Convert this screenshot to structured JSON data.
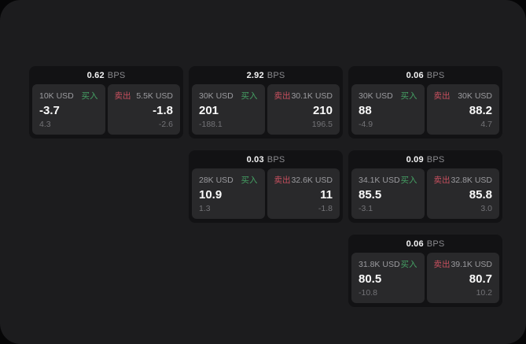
{
  "labels": {
    "bps": "BPS",
    "buy": "买入",
    "sell": "卖出"
  },
  "colors": {
    "background": "#060607",
    "panel": "#1c1c1e",
    "card": "#121214",
    "pane": "#29292b",
    "buy_green": "#45a164",
    "sell_red": "#c8505f",
    "value_white": "#fafafa",
    "muted_gray": "#9b9b9f",
    "dim_gray": "#737377"
  },
  "cards": [
    {
      "bps": "0.62",
      "buy": {
        "size": "10K USD",
        "value": "-3.7",
        "delta": "4.3"
      },
      "sell": {
        "size": "5.5K USD",
        "value": "-1.8",
        "delta": "-2.6"
      }
    },
    {
      "bps": "2.92",
      "buy": {
        "size": "30K USD",
        "value": "201",
        "delta": "-188.1"
      },
      "sell": {
        "size": "30.1K USD",
        "value": "210",
        "delta": "196.5"
      }
    },
    {
      "bps": "0.06",
      "buy": {
        "size": "30K USD",
        "value": "88",
        "delta": "-4.9"
      },
      "sell": {
        "size": "30K USD",
        "value": "88.2",
        "delta": "4.7"
      }
    },
    {
      "bps": "0.03",
      "buy": {
        "size": "28K USD",
        "value": "10.9",
        "delta": "1.3"
      },
      "sell": {
        "size": "32.6K USD",
        "value": "11",
        "delta": "-1.8"
      }
    },
    {
      "bps": "0.09",
      "buy": {
        "size": "34.1K USD",
        "value": "85.5",
        "delta": "-3.1"
      },
      "sell": {
        "size": "32.8K USD",
        "value": "85.8",
        "delta": "3.0"
      }
    },
    {
      "bps": "0.06",
      "buy": {
        "size": "31.8K USD",
        "value": "80.5",
        "delta": "-10.8"
      },
      "sell": {
        "size": "39.1K USD",
        "value": "80.7",
        "delta": "10.2"
      }
    }
  ]
}
